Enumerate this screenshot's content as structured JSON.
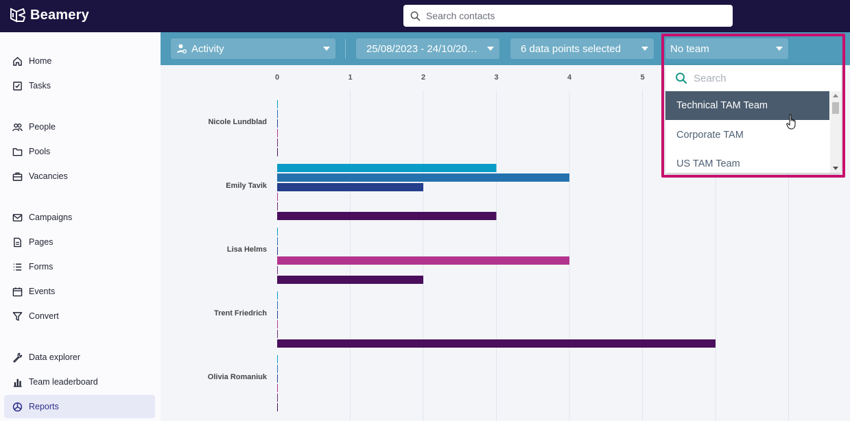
{
  "app": {
    "name": "Beamery"
  },
  "search": {
    "placeholder": "Search contacts"
  },
  "sidebar": {
    "items": [
      {
        "label": "Home",
        "icon": "home-icon"
      },
      {
        "label": "Tasks",
        "icon": "tasks-icon"
      },
      {
        "label": "People",
        "icon": "people-icon"
      },
      {
        "label": "Pools",
        "icon": "folder-icon"
      },
      {
        "label": "Vacancies",
        "icon": "briefcase-icon"
      },
      {
        "label": "Campaigns",
        "icon": "mail-icon"
      },
      {
        "label": "Pages",
        "icon": "page-icon"
      },
      {
        "label": "Forms",
        "icon": "list-icon"
      },
      {
        "label": "Events",
        "icon": "calendar-icon"
      },
      {
        "label": "Convert",
        "icon": "filter-icon"
      },
      {
        "label": "Data explorer",
        "icon": "wrench-icon"
      },
      {
        "label": "Team leaderboard",
        "icon": "bar-chart-icon"
      },
      {
        "label": "Reports",
        "icon": "pie-chart-icon",
        "active": true
      }
    ]
  },
  "filters": {
    "activity": "Activity",
    "date_range": "25/08/2023 - 24/10/20…",
    "data_points": "6 data points selected",
    "team": "No team"
  },
  "team_dropdown": {
    "search_placeholder": "Search",
    "options": [
      "Technical TAM Team",
      "Corporate TAM",
      "US TAM Team"
    ],
    "hovered": "Technical TAM Team"
  },
  "colors": {
    "series": [
      "#0a9cc7",
      "#2472ad",
      "#263f8c",
      "#b3348e",
      "#6e2a78",
      "#4a0e5c"
    ],
    "topbar": "#1b1340",
    "filterbar": "#4f9bb9",
    "highlight": "#c8106d"
  },
  "chart_data": {
    "type": "bar",
    "orientation": "horizontal",
    "xlim": [
      0,
      7
    ],
    "x_ticks": [
      "0",
      "1",
      "2",
      "3",
      "4",
      "5"
    ],
    "categories": [
      "Nicole Lundblad",
      "Emily Tavik",
      "Lisa Helms",
      "Trent Friedrich",
      "Olivia Romaniuk"
    ],
    "series": [
      {
        "values": [
          0,
          3,
          0,
          0,
          0
        ]
      },
      {
        "values": [
          0,
          4,
          0,
          0,
          0
        ]
      },
      {
        "values": [
          0,
          2,
          0,
          0,
          0
        ]
      },
      {
        "values": [
          0,
          0,
          4,
          0,
          0
        ]
      },
      {
        "values": [
          0,
          0,
          0,
          0,
          0
        ]
      },
      {
        "values": [
          0,
          3,
          2,
          6,
          0
        ]
      }
    ],
    "grid": true
  }
}
